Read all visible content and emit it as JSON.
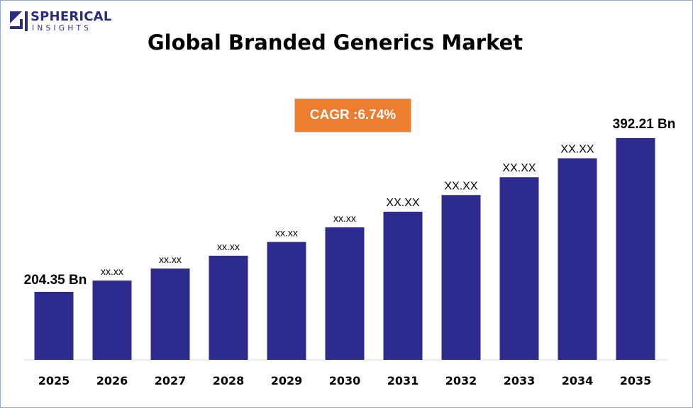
{
  "brand": {
    "name_line1": "SPHERICAL",
    "name_line2": "INSIGHTS"
  },
  "title": "Global Branded Generics Market",
  "cagr_label": "CAGR :6.74%",
  "colors": {
    "bar": "#2e2b8f",
    "cagr_box": "#ed7d31",
    "brand": "#2b2d7c",
    "frame_border": "#8eaadb"
  },
  "chart_data": {
    "type": "bar",
    "title": "Global Branded Generics Market",
    "xlabel": "",
    "ylabel": "",
    "categories": [
      "2025",
      "2026",
      "2027",
      "2028",
      "2029",
      "2030",
      "2031",
      "2032",
      "2033",
      "2034",
      "2035"
    ],
    "values": [
      204.35,
      218.1,
      232.8,
      248.5,
      265.3,
      283.2,
      302.3,
      322.7,
      344.4,
      367.6,
      392.21
    ],
    "data_labels": [
      "204.35 Bn",
      "xx.xx",
      "xx.xx",
      "xx.xx",
      "xx.xx",
      "xx.xx",
      "XX.XX",
      "XX.XX",
      "XX.XX",
      "XX.XX",
      "392.21 Bn"
    ],
    "ylim": [
      0,
      420
    ],
    "grid": false,
    "legend": "none"
  }
}
